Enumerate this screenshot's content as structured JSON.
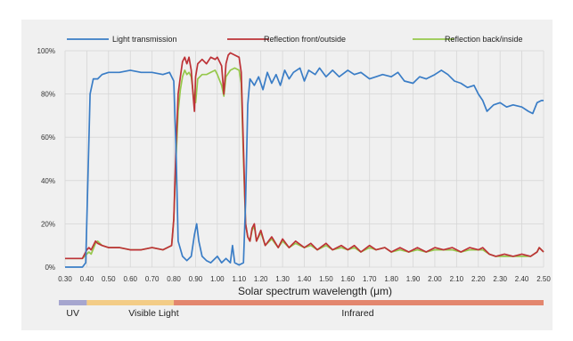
{
  "chart_data": {
    "type": "line",
    "title": "",
    "xlabel": "Solar spectrum wavelength (μm)",
    "ylabel": "",
    "x_ticks": [
      "0.30",
      "0.40",
      "0.50",
      "0.60",
      "0.70",
      "0.80",
      "0.90",
      "1.00",
      "1.10",
      "1.20",
      "1.30",
      "1.40",
      "1.50",
      "1.60",
      "1.70",
      "1.80",
      "1.90",
      "2.00",
      "2.10",
      "2.20",
      "2.30",
      "2.40",
      "2.50"
    ],
    "y_ticks": [
      "0%",
      "20%",
      "40%",
      "60%",
      "80%",
      "100%"
    ],
    "xlim": [
      0.3,
      2.5
    ],
    "ylim": [
      0,
      100
    ],
    "grid": true,
    "legend_position": "top",
    "series": [
      {
        "name": "Light transmission",
        "color": "#3a7dc6",
        "points": [
          [
            0.3,
            0
          ],
          [
            0.38,
            0
          ],
          [
            0.395,
            2
          ],
          [
            0.405,
            40
          ],
          [
            0.415,
            80
          ],
          [
            0.43,
            87
          ],
          [
            0.45,
            87
          ],
          [
            0.47,
            89
          ],
          [
            0.5,
            90
          ],
          [
            0.55,
            90
          ],
          [
            0.6,
            91
          ],
          [
            0.65,
            90
          ],
          [
            0.7,
            90
          ],
          [
            0.75,
            89
          ],
          [
            0.78,
            90
          ],
          [
            0.8,
            86
          ],
          [
            0.81,
            55
          ],
          [
            0.82,
            12
          ],
          [
            0.84,
            5
          ],
          [
            0.86,
            3
          ],
          [
            0.88,
            5
          ],
          [
            0.895,
            15
          ],
          [
            0.905,
            20
          ],
          [
            0.915,
            12
          ],
          [
            0.93,
            5
          ],
          [
            0.95,
            3
          ],
          [
            0.97,
            2
          ],
          [
            1.0,
            5
          ],
          [
            1.02,
            2
          ],
          [
            1.04,
            4
          ],
          [
            1.06,
            2
          ],
          [
            1.07,
            10
          ],
          [
            1.08,
            2
          ],
          [
            1.1,
            1
          ],
          [
            1.12,
            2
          ],
          [
            1.13,
            30
          ],
          [
            1.14,
            75
          ],
          [
            1.15,
            87
          ],
          [
            1.17,
            84
          ],
          [
            1.19,
            88
          ],
          [
            1.21,
            82
          ],
          [
            1.23,
            90
          ],
          [
            1.25,
            85
          ],
          [
            1.27,
            89
          ],
          [
            1.29,
            84
          ],
          [
            1.31,
            91
          ],
          [
            1.33,
            87
          ],
          [
            1.35,
            90
          ],
          [
            1.38,
            92
          ],
          [
            1.4,
            86
          ],
          [
            1.42,
            91
          ],
          [
            1.45,
            89
          ],
          [
            1.47,
            92
          ],
          [
            1.5,
            88
          ],
          [
            1.53,
            91
          ],
          [
            1.56,
            88
          ],
          [
            1.6,
            91
          ],
          [
            1.63,
            89
          ],
          [
            1.66,
            90
          ],
          [
            1.7,
            87
          ],
          [
            1.73,
            88
          ],
          [
            1.76,
            89
          ],
          [
            1.8,
            88
          ],
          [
            1.83,
            90
          ],
          [
            1.86,
            86
          ],
          [
            1.9,
            85
          ],
          [
            1.93,
            88
          ],
          [
            1.96,
            87
          ],
          [
            2.0,
            89
          ],
          [
            2.03,
            91
          ],
          [
            2.06,
            89
          ],
          [
            2.09,
            86
          ],
          [
            2.12,
            85
          ],
          [
            2.15,
            83
          ],
          [
            2.18,
            84
          ],
          [
            2.2,
            80
          ],
          [
            2.22,
            77
          ],
          [
            2.24,
            72
          ],
          [
            2.27,
            75
          ],
          [
            2.3,
            76
          ],
          [
            2.33,
            74
          ],
          [
            2.36,
            75
          ],
          [
            2.4,
            74
          ],
          [
            2.43,
            72
          ],
          [
            2.45,
            71
          ],
          [
            2.47,
            76
          ],
          [
            2.49,
            77
          ],
          [
            2.5,
            77
          ]
        ]
      },
      {
        "name": "Reflection front/outside",
        "color": "#bd3237",
        "points": [
          [
            0.3,
            4
          ],
          [
            0.38,
            4
          ],
          [
            0.4,
            8
          ],
          [
            0.41,
            9
          ],
          [
            0.42,
            8
          ],
          [
            0.44,
            12
          ],
          [
            0.45,
            11
          ],
          [
            0.47,
            10
          ],
          [
            0.5,
            9
          ],
          [
            0.55,
            9
          ],
          [
            0.6,
            8
          ],
          [
            0.65,
            8
          ],
          [
            0.7,
            9
          ],
          [
            0.75,
            8
          ],
          [
            0.79,
            10
          ],
          [
            0.8,
            22
          ],
          [
            0.81,
            55
          ],
          [
            0.82,
            80
          ],
          [
            0.83,
            88
          ],
          [
            0.84,
            95
          ],
          [
            0.85,
            97
          ],
          [
            0.86,
            94
          ],
          [
            0.87,
            97
          ],
          [
            0.88,
            91
          ],
          [
            0.89,
            78
          ],
          [
            0.895,
            72
          ],
          [
            0.9,
            88
          ],
          [
            0.91,
            94
          ],
          [
            0.93,
            96
          ],
          [
            0.95,
            94
          ],
          [
            0.97,
            97
          ],
          [
            0.99,
            96
          ],
          [
            1.0,
            97
          ],
          [
            1.02,
            93
          ],
          [
            1.03,
            80
          ],
          [
            1.04,
            94
          ],
          [
            1.05,
            98
          ],
          [
            1.06,
            99
          ],
          [
            1.08,
            98
          ],
          [
            1.1,
            97
          ],
          [
            1.11,
            90
          ],
          [
            1.12,
            55
          ],
          [
            1.13,
            20
          ],
          [
            1.14,
            14
          ],
          [
            1.15,
            12
          ],
          [
            1.16,
            18
          ],
          [
            1.17,
            20
          ],
          [
            1.18,
            12
          ],
          [
            1.2,
            17
          ],
          [
            1.22,
            10
          ],
          [
            1.25,
            14
          ],
          [
            1.28,
            9
          ],
          [
            1.3,
            13
          ],
          [
            1.33,
            9
          ],
          [
            1.36,
            12
          ],
          [
            1.4,
            9
          ],
          [
            1.43,
            11
          ],
          [
            1.46,
            8
          ],
          [
            1.5,
            11
          ],
          [
            1.53,
            8
          ],
          [
            1.57,
            10
          ],
          [
            1.6,
            8
          ],
          [
            1.63,
            10
          ],
          [
            1.66,
            7
          ],
          [
            1.7,
            10
          ],
          [
            1.73,
            8
          ],
          [
            1.77,
            9
          ],
          [
            1.8,
            7
          ],
          [
            1.84,
            9
          ],
          [
            1.88,
            7
          ],
          [
            1.92,
            9
          ],
          [
            1.96,
            7
          ],
          [
            2.0,
            9
          ],
          [
            2.04,
            8
          ],
          [
            2.08,
            9
          ],
          [
            2.12,
            7
          ],
          [
            2.16,
            9
          ],
          [
            2.2,
            8
          ],
          [
            2.22,
            9
          ],
          [
            2.25,
            6
          ],
          [
            2.28,
            5
          ],
          [
            2.32,
            6
          ],
          [
            2.36,
            5
          ],
          [
            2.4,
            6
          ],
          [
            2.44,
            5
          ],
          [
            2.47,
            7
          ],
          [
            2.48,
            9
          ],
          [
            2.5,
            7
          ]
        ]
      },
      {
        "name": "Reflection back/inside",
        "color": "#96c84c",
        "points": [
          [
            0.3,
            4
          ],
          [
            0.38,
            4
          ],
          [
            0.4,
            6
          ],
          [
            0.41,
            7
          ],
          [
            0.42,
            6
          ],
          [
            0.44,
            11
          ],
          [
            0.45,
            12
          ],
          [
            0.47,
            10
          ],
          [
            0.5,
            9
          ],
          [
            0.55,
            9
          ],
          [
            0.6,
            8
          ],
          [
            0.65,
            8
          ],
          [
            0.7,
            9
          ],
          [
            0.75,
            8
          ],
          [
            0.79,
            10
          ],
          [
            0.8,
            22
          ],
          [
            0.81,
            50
          ],
          [
            0.82,
            72
          ],
          [
            0.83,
            82
          ],
          [
            0.84,
            88
          ],
          [
            0.85,
            91
          ],
          [
            0.86,
            89
          ],
          [
            0.87,
            90
          ],
          [
            0.88,
            88
          ],
          [
            0.89,
            80
          ],
          [
            0.9,
            76
          ],
          [
            0.91,
            87
          ],
          [
            0.93,
            89
          ],
          [
            0.95,
            89
          ],
          [
            0.97,
            90
          ],
          [
            0.99,
            91
          ],
          [
            1.0,
            89
          ],
          [
            1.02,
            84
          ],
          [
            1.03,
            79
          ],
          [
            1.04,
            88
          ],
          [
            1.06,
            91
          ],
          [
            1.08,
            92
          ],
          [
            1.1,
            91
          ],
          [
            1.11,
            85
          ],
          [
            1.12,
            50
          ],
          [
            1.13,
            20
          ],
          [
            1.14,
            14
          ],
          [
            1.15,
            12
          ],
          [
            1.16,
            17
          ],
          [
            1.17,
            19
          ],
          [
            1.18,
            12
          ],
          [
            1.2,
            16
          ],
          [
            1.22,
            10
          ],
          [
            1.25,
            13
          ],
          [
            1.28,
            9
          ],
          [
            1.3,
            12
          ],
          [
            1.33,
            9
          ],
          [
            1.36,
            11
          ],
          [
            1.4,
            9
          ],
          [
            1.43,
            10
          ],
          [
            1.46,
            8
          ],
          [
            1.5,
            10
          ],
          [
            1.53,
            8
          ],
          [
            1.57,
            9
          ],
          [
            1.6,
            8
          ],
          [
            1.63,
            9
          ],
          [
            1.66,
            7
          ],
          [
            1.7,
            9
          ],
          [
            1.73,
            8
          ],
          [
            1.77,
            9
          ],
          [
            1.8,
            7
          ],
          [
            1.84,
            8
          ],
          [
            1.88,
            7
          ],
          [
            1.92,
            8
          ],
          [
            1.96,
            7
          ],
          [
            2.0,
            8
          ],
          [
            2.04,
            8
          ],
          [
            2.08,
            8
          ],
          [
            2.12,
            7
          ],
          [
            2.16,
            8
          ],
          [
            2.2,
            8
          ],
          [
            2.22,
            8
          ],
          [
            2.25,
            6
          ],
          [
            2.28,
            5
          ],
          [
            2.32,
            5
          ],
          [
            2.36,
            5
          ],
          [
            2.4,
            5
          ],
          [
            2.44,
            5
          ],
          [
            2.47,
            7
          ],
          [
            2.48,
            9
          ],
          [
            2.5,
            7
          ]
        ]
      }
    ],
    "bands": [
      {
        "label": "UV",
        "from": 0.3,
        "to": 0.4,
        "color": "#a6a6cf"
      },
      {
        "label": "Visible Light",
        "from": 0.4,
        "to": 0.8,
        "color": "#f3cc86"
      },
      {
        "label": "Infrared",
        "from": 0.8,
        "to": 2.5,
        "color": "#e3866e"
      }
    ],
    "colors": {
      "grid": "#d6d6d6",
      "background": "#f0f0f0"
    }
  }
}
